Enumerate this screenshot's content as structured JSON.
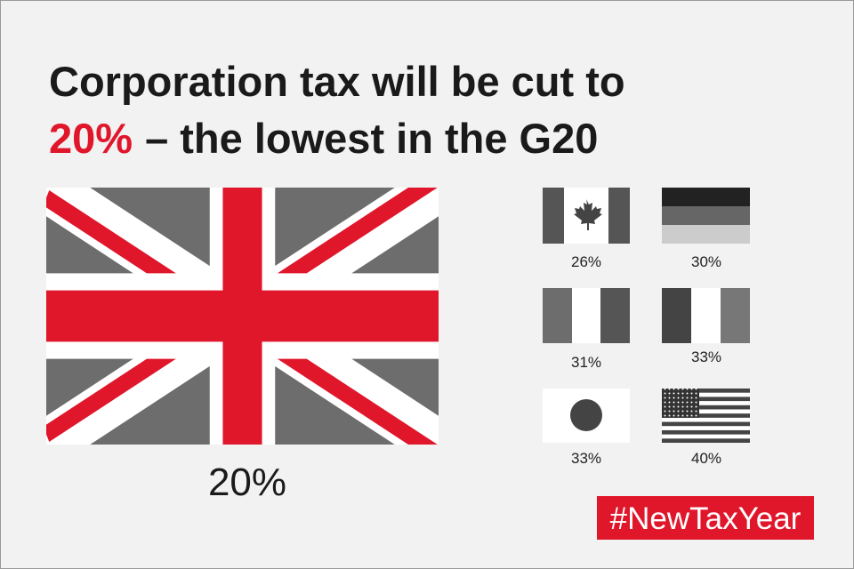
{
  "title": {
    "line1": "Corporation tax will be cut to",
    "highlight": "20%",
    "line2": "– the lowest in the G20"
  },
  "main_flag": {
    "label": "20%"
  },
  "small_flags": [
    {
      "label": "26%"
    },
    {
      "label": "30%"
    },
    {
      "label": "31%"
    },
    {
      "label": "33%"
    },
    {
      "label": "33%"
    },
    {
      "label": "40%"
    }
  ],
  "hashtag": "#NewTaxYear"
}
